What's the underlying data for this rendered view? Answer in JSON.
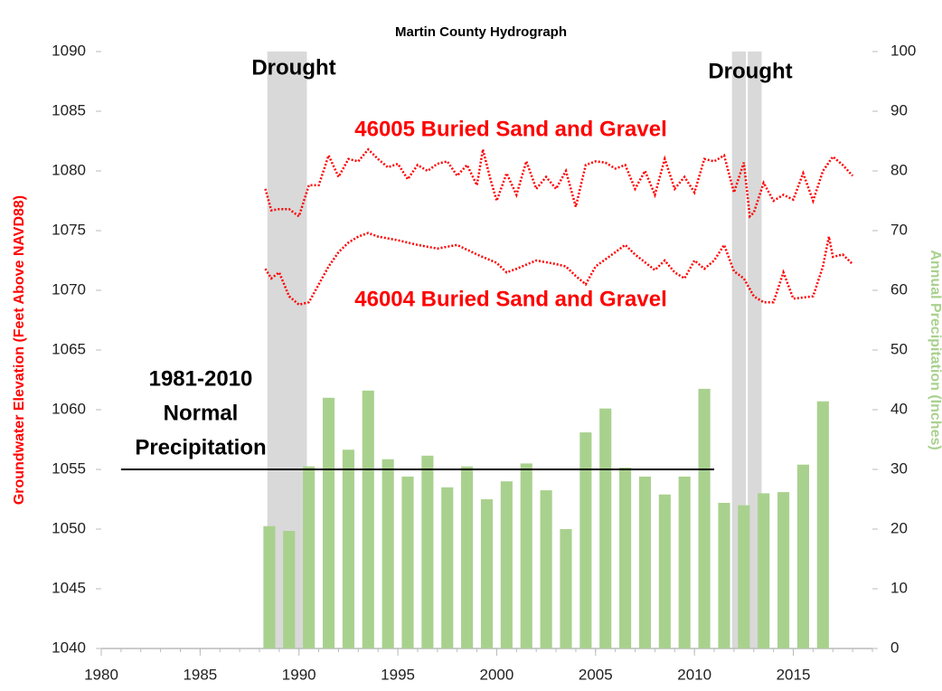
{
  "chart_data": {
    "type": "combo",
    "title": "Martin County Hydrograph",
    "y_label": "Groundwater Elevation (Feet Above NAVD88)",
    "y2_label": "Annual Precipitation (Inches)",
    "xlim": [
      1980,
      2019
    ],
    "xticks": [
      1980,
      1985,
      1990,
      1995,
      2000,
      2005,
      2010,
      2015
    ],
    "ylim": [
      1040,
      1090
    ],
    "yticks": [
      1040,
      1045,
      1050,
      1055,
      1060,
      1065,
      1070,
      1075,
      1080,
      1085,
      1090
    ],
    "y2lim": [
      0,
      100
    ],
    "y2ticks": [
      0,
      10,
      20,
      30,
      40,
      50,
      60,
      70,
      80,
      90,
      100
    ],
    "bars": {
      "type": "bar",
      "axis": "y2",
      "color": "#a9d18e",
      "x": [
        1988,
        1989,
        1990,
        1991,
        1992,
        1993,
        1994,
        1995,
        1996,
        1997,
        1998,
        1999,
        2000,
        2001,
        2002,
        2003,
        2004,
        2005,
        2006,
        2007,
        2008,
        2009,
        2010,
        2011,
        2012,
        2013,
        2014,
        2015,
        2016
      ],
      "values": [
        20.5,
        19.7,
        30.5,
        42,
        33.3,
        43.2,
        31.7,
        28.8,
        32.3,
        27,
        30.5,
        25,
        28,
        31,
        26.5,
        20,
        36.2,
        40.2,
        30.3,
        28.8,
        25.8,
        28.8,
        43.5,
        24.4,
        24,
        26,
        26.2,
        30.8,
        41.4
      ]
    },
    "series": [
      {
        "name": "46005 Buried Sand and Gravel",
        "color": "#ff0000",
        "type": "line",
        "x": [
          1988.3,
          1988.6,
          1989,
          1989.5,
          1990,
          1990.5,
          1991,
          1991.5,
          1992,
          1992.5,
          1993,
          1993.5,
          1994,
          1994.5,
          1995,
          1995.5,
          1996,
          1996.5,
          1997,
          1997.5,
          1998,
          1998.5,
          1999,
          1999.3,
          1999.7,
          2000,
          2000.5,
          2001,
          2001.5,
          2002,
          2002.5,
          2003,
          2003.5,
          2004,
          2004.5,
          2005,
          2005.5,
          2006,
          2006.5,
          2007,
          2007.5,
          2008,
          2008.5,
          2009,
          2009.5,
          2010,
          2010.5,
          2011,
          2011.5,
          2012,
          2012.5,
          2012.8,
          2013,
          2013.5,
          2014,
          2014.5,
          2015,
          2015.5,
          2016,
          2016.5,
          2017,
          2017.5,
          2018
        ],
        "values": [
          1078.5,
          1076.7,
          1076.8,
          1076.8,
          1076.2,
          1078.8,
          1078.8,
          1081.3,
          1079.5,
          1081,
          1080.8,
          1081.8,
          1081,
          1080.3,
          1080.6,
          1079.3,
          1080.5,
          1080,
          1080.6,
          1080.8,
          1079.6,
          1080.5,
          1078.8,
          1081.8,
          1079.2,
          1077.5,
          1079.8,
          1078,
          1080.8,
          1078.5,
          1079.5,
          1078.5,
          1080,
          1077,
          1080.5,
          1080.8,
          1080.7,
          1080.2,
          1080.5,
          1078.5,
          1080,
          1078,
          1081,
          1078.5,
          1079.5,
          1078.2,
          1081,
          1080.8,
          1081.3,
          1078.2,
          1080.7,
          1076.2,
          1076.5,
          1079,
          1077.5,
          1078,
          1077.6,
          1079.8,
          1077.5,
          1080,
          1081.2,
          1080.5,
          1079.6
        ]
      },
      {
        "name": "46004 Buried Sand and Gravel",
        "color": "#ff0000",
        "type": "line",
        "x": [
          1988.3,
          1988.6,
          1989,
          1989.5,
          1990,
          1990.5,
          1991,
          1991.5,
          1992,
          1992.5,
          1993,
          1993.5,
          1994,
          1995,
          1996,
          1997,
          1998,
          1999,
          2000,
          2000.5,
          2001,
          2002,
          2003,
          2003.5,
          2004,
          2004.5,
          2005,
          2006,
          2006.5,
          2007,
          2008,
          2008.5,
          2009,
          2009.5,
          2010,
          2010.5,
          2011,
          2011.5,
          2012,
          2012.5,
          2013,
          2013.5,
          2014,
          2014.5,
          2015,
          2016,
          2016.5,
          2016.8,
          2017,
          2017.5,
          2018
        ],
        "values": [
          1071.8,
          1071,
          1071.5,
          1069.5,
          1068.8,
          1069,
          1070.5,
          1072,
          1073.2,
          1074,
          1074.5,
          1074.8,
          1074.5,
          1074.2,
          1073.8,
          1073.5,
          1073.8,
          1073,
          1072.3,
          1071.5,
          1071.8,
          1072.5,
          1072.2,
          1072,
          1071.2,
          1070.5,
          1072,
          1073.2,
          1073.8,
          1073,
          1071.7,
          1072.5,
          1071.5,
          1071,
          1072.5,
          1071.8,
          1072.5,
          1073.8,
          1071.6,
          1071,
          1069.5,
          1069,
          1069,
          1071.5,
          1069.3,
          1069.5,
          1072,
          1074.5,
          1072.8,
          1073,
          1072.2
        ]
      }
    ],
    "shaded": {
      "label": "Drought",
      "color": "#d9d9d9",
      "spans": [
        [
          1988.4,
          1990.4
        ],
        [
          2011.9,
          2012.6
        ],
        [
          2012.7,
          2013.4
        ]
      ]
    },
    "annotations": [
      "Drought",
      "Drought"
    ],
    "normal_line": {
      "lines": [
        "1981-2010",
        "Normal",
        "Precipitation"
      ],
      "value": 30,
      "x": [
        1981,
        2011
      ],
      "color": "#000000"
    }
  }
}
